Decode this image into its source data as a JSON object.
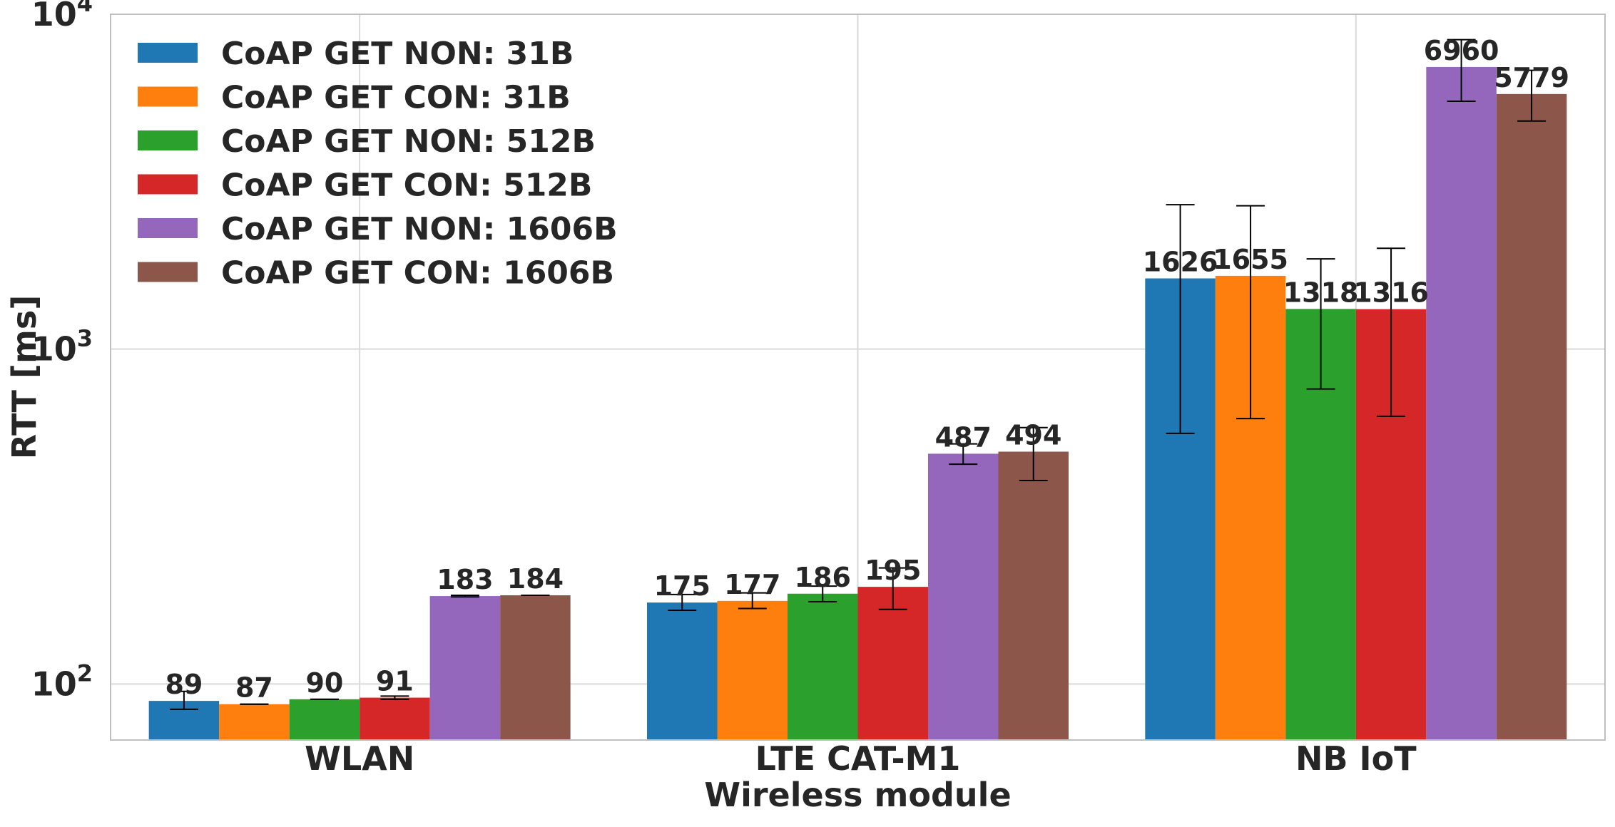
{
  "chart_data": {
    "type": "bar",
    "xlabel": "Wireless module",
    "ylabel": "RTT [ms]",
    "yscale": "log",
    "ylim": [
      68,
      10000
    ],
    "grid": true,
    "legend_position": "top-left",
    "categories": [
      "WLAN",
      "LTE CAT-M1",
      "NB IoT"
    ],
    "y_ticks": [
      {
        "value": 100,
        "base": "10",
        "exp": "2"
      },
      {
        "value": 1000,
        "base": "10",
        "exp": "3"
      },
      {
        "value": 10000,
        "base": "10",
        "exp": "4"
      }
    ],
    "series": [
      {
        "name": "CoAP GET NON: 31B",
        "color": "#1f77b4",
        "values": [
          89,
          175,
          1626
        ],
        "labels": [
          "89",
          "175",
          "1626"
        ],
        "err_low": [
          84,
          166,
          560
        ],
        "err_high": [
          95,
          185,
          2700
        ]
      },
      {
        "name": "CoAP GET CON: 31B",
        "color": "#ff7f0e",
        "values": [
          87,
          177,
          1655
        ],
        "labels": [
          "87",
          "177",
          "1655"
        ],
        "err_low": [
          87,
          168,
          620
        ],
        "err_high": [
          87,
          187,
          2680
        ]
      },
      {
        "name": "CoAP GET NON: 512B",
        "color": "#2ca02c",
        "values": [
          90,
          186,
          1318
        ],
        "labels": [
          "90",
          "186",
          "1318"
        ],
        "err_low": [
          90,
          176,
          760
        ],
        "err_high": [
          90,
          196,
          1860
        ]
      },
      {
        "name": "CoAP GET CON: 512B",
        "color": "#d62728",
        "values": [
          91,
          195,
          1316
        ],
        "labels": [
          "91",
          "195",
          "1316"
        ],
        "err_low": [
          90,
          167,
          630
        ],
        "err_high": [
          92,
          222,
          2000
        ]
      },
      {
        "name": "CoAP GET NON: 1606B",
        "color": "#9467bd",
        "values": [
          183,
          487,
          6960
        ],
        "labels": [
          "183",
          "487",
          "6960"
        ],
        "err_low": [
          182,
          453,
          5500
        ],
        "err_high": [
          184,
          521,
          8400
        ]
      },
      {
        "name": "CoAP GET CON: 1606B",
        "color": "#8c564b",
        "values": [
          184,
          494,
          5779
        ],
        "labels": [
          "184",
          "494",
          "5779"
        ],
        "err_low": [
          184,
          405,
          4800
        ],
        "err_high": [
          184,
          583,
          6800
        ]
      }
    ]
  }
}
